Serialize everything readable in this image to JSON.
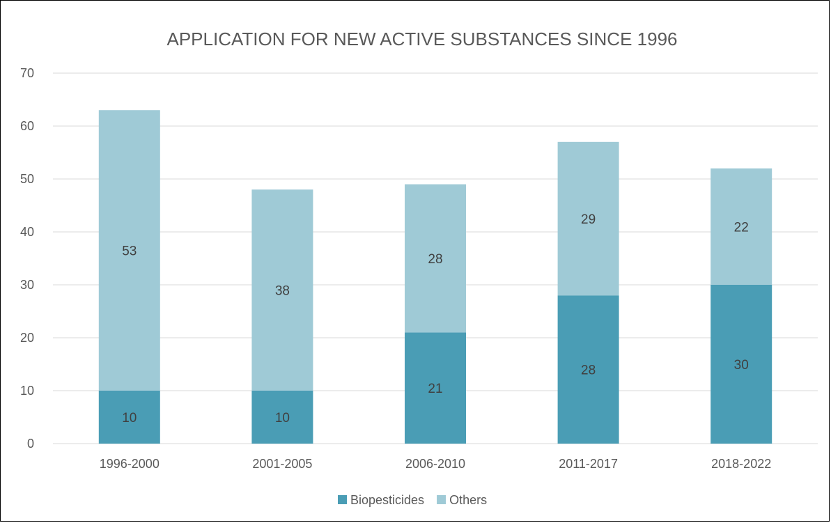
{
  "chart_data": {
    "type": "bar",
    "stacked": true,
    "title": "APPLICATION FOR NEW ACTIVE SUBSTANCES SINCE 1996",
    "xlabel": "",
    "ylabel": "",
    "categories": [
      "1996-2000",
      "2001-2005",
      "2006-2010",
      "2011-2017",
      "2018-2022"
    ],
    "series": [
      {
        "name": "Biopesticides",
        "values": [
          10,
          10,
          21,
          28,
          30
        ],
        "color": "#4a9db5"
      },
      {
        "name": "Others",
        "values": [
          53,
          38,
          28,
          29,
          22
        ],
        "color": "#9fcad6"
      }
    ],
    "ylim": [
      0,
      70
    ],
    "yticks": [
      "0",
      "10",
      "20",
      "30",
      "40",
      "50",
      "60",
      "70"
    ],
    "grid": true,
    "legend_position": "bottom"
  }
}
